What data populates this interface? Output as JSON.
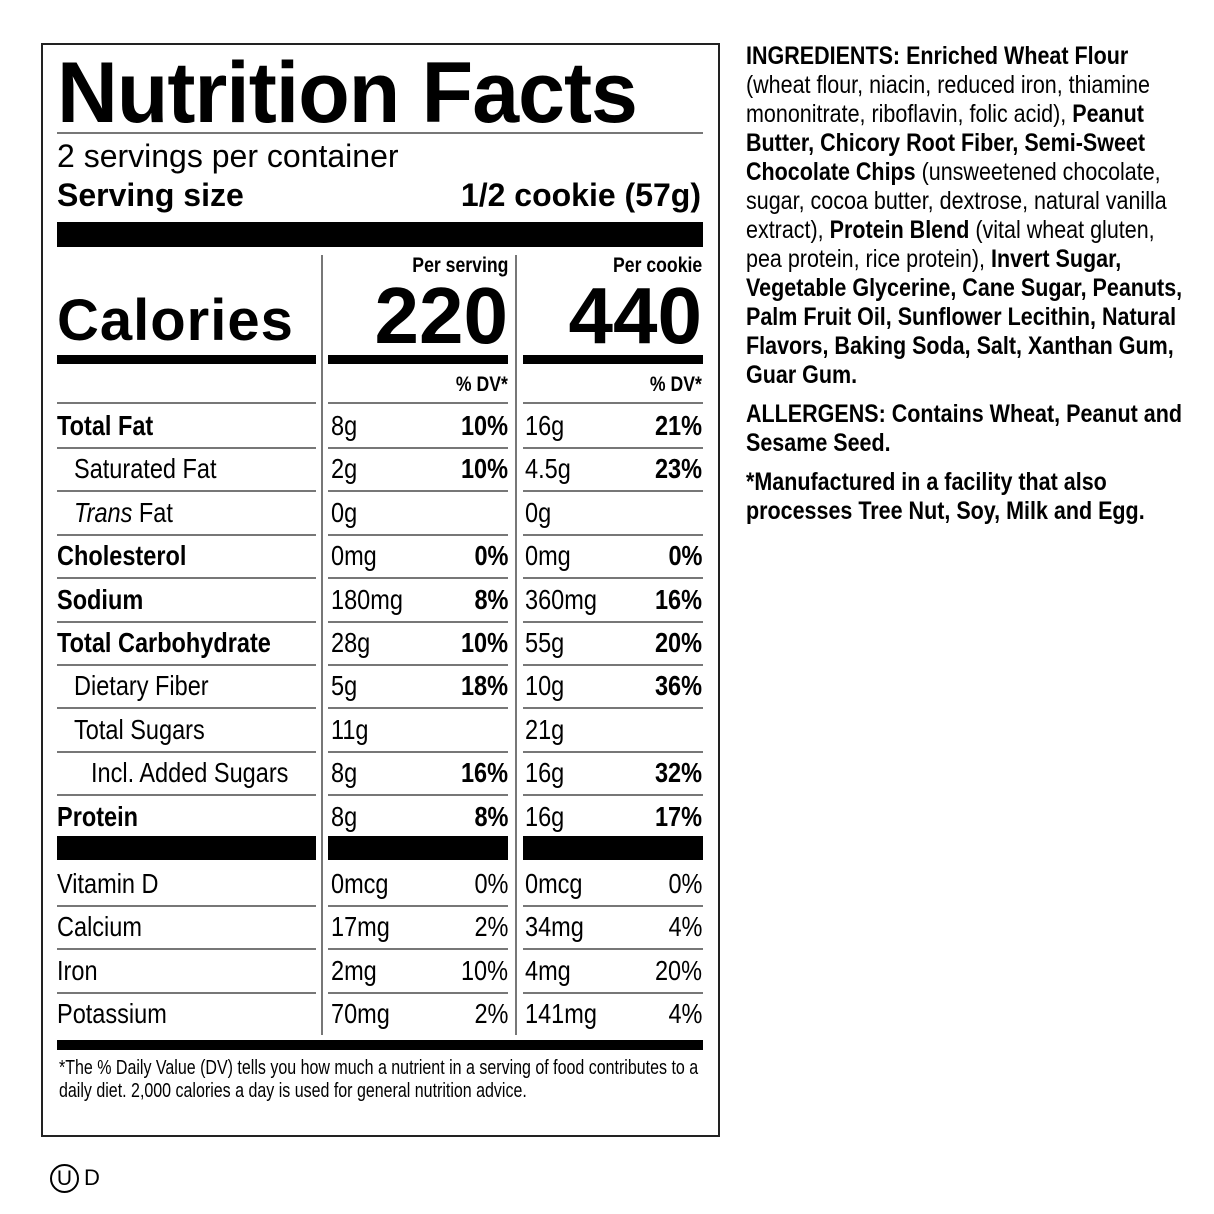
{
  "label": {
    "title": "Nutrition Facts",
    "servings_per_container": "2 servings per container",
    "serving_size_label": "Serving size",
    "serving_size_value": "1/2 cookie (57g)",
    "calories_label": "Calories",
    "columns": [
      {
        "header": "Per serving",
        "calories": "220",
        "dv_header": "% DV*"
      },
      {
        "header": "Per cookie",
        "calories": "440",
        "dv_header": "% DV*"
      }
    ],
    "nutrients": [
      {
        "name": "Total Fat",
        "bold": true,
        "indent": 0,
        "v1": "8g",
        "d1": "10%",
        "v2": "16g",
        "d2": "21%"
      },
      {
        "name": "Saturated Fat",
        "bold": false,
        "indent": 1,
        "v1": "2g",
        "d1": "10%",
        "v2": "4.5g",
        "d2": "23%"
      },
      {
        "name_italic": "Trans",
        "name": " Fat",
        "bold": false,
        "indent": 1,
        "v1": "0g",
        "d1": "",
        "v2": "0g",
        "d2": ""
      },
      {
        "name": "Cholesterol",
        "bold": true,
        "indent": 0,
        "v1": "0mg",
        "d1": "0%",
        "v2": "0mg",
        "d2": "0%"
      },
      {
        "name": "Sodium",
        "bold": true,
        "indent": 0,
        "v1": "180mg",
        "d1": "8%",
        "v2": "360mg",
        "d2": "16%"
      },
      {
        "name": "Total Carbohydrate",
        "bold": true,
        "indent": 0,
        "v1": "28g",
        "d1": "10%",
        "v2": "55g",
        "d2": "20%"
      },
      {
        "name": "Dietary Fiber",
        "bold": false,
        "indent": 1,
        "v1": "5g",
        "d1": "18%",
        "v2": "10g",
        "d2": "36%"
      },
      {
        "name": "Total Sugars",
        "bold": false,
        "indent": 1,
        "v1": "11g",
        "d1": "",
        "v2": "21g",
        "d2": ""
      },
      {
        "name": "Incl. Added Sugars",
        "bold": false,
        "indent": 2,
        "v1": "8g",
        "d1": "16%",
        "v2": "16g",
        "d2": "32%"
      },
      {
        "name": "Protein",
        "bold": true,
        "indent": 0,
        "v1": "8g",
        "d1": "8%",
        "v2": "16g",
        "d2": "17%"
      }
    ],
    "vitamins": [
      {
        "name": "Vitamin D",
        "v1": "0mcg",
        "d1": "0%",
        "v2": "0mcg",
        "d2": "0%"
      },
      {
        "name": "Calcium",
        "v1": "17mg",
        "d1": "2%",
        "v2": "34mg",
        "d2": "4%"
      },
      {
        "name": "Iron",
        "v1": "2mg",
        "d1": "10%",
        "v2": "4mg",
        "d2": "20%"
      },
      {
        "name": "Potassium",
        "v1": "70mg",
        "d1": "2%",
        "v2": "141mg",
        "d2": "4%"
      }
    ],
    "footnote": "*The % Daily Value (DV) tells you how much a nutrient in a serving of food contributes to a daily diet. 2,000 calories a day is used for general nutrition advice."
  },
  "ingredients": [
    [
      {
        "t": "INGREDIENTS: Enriched Wheat Flour",
        "b": true
      },
      {
        "t": " (wheat flour, niacin, reduced iron, thiamine mononitrate, riboflavin, folic acid), ",
        "b": false
      },
      {
        "t": "Peanut Butter, Chicory Root Fiber, Semi-Sweet Chocolate Chips",
        "b": true
      },
      {
        "t": " (unsweetened chocolate, sugar, cocoa butter, dextrose, natural vanilla extract), ",
        "b": false
      },
      {
        "t": "Protein Blend",
        "b": true
      },
      {
        "t": " (vital wheat gluten, pea protein, rice protein), ",
        "b": false
      },
      {
        "t": "Invert Sugar, Vegetable Glycerine, Cane Sugar, Peanuts, Palm Fruit Oil, Sunflower Lecithin, Natural Flavors, Baking Soda, Salt, Xanthan Gum, Guar Gum.",
        "b": true
      }
    ],
    [
      {
        "t": "ALLERGENS: Contains Wheat, Peanut and Sesame Seed.",
        "b": true
      }
    ],
    [
      {
        "t": "*Manufactured in a facility that also processes Tree Nut, Soy, Milk and Egg.",
        "b": true
      }
    ]
  ],
  "kosher_mark": {
    "symbol": "U",
    "suffix": "D"
  }
}
